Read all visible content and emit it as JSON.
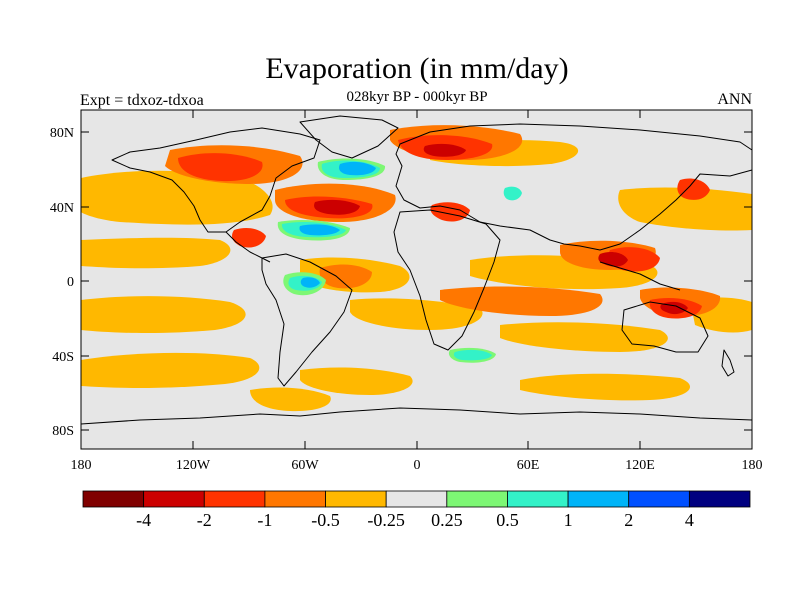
{
  "header": {
    "title": "Evaporation (in mm/day)",
    "subtitle": "028kyr BP - 000kyr BP",
    "left_label": "Expt = tdxoz-tdxoa",
    "right_label": "ANN"
  },
  "map": {
    "x_ticks": [
      "180",
      "120W",
      "60W",
      "0",
      "60E",
      "120E",
      "180"
    ],
    "y_ticks": [
      "80N",
      "40N",
      "0",
      "40S",
      "80S"
    ],
    "land_color": "#e6e6e6",
    "ocean_color": "#e6e6e6",
    "coast_color": "#000000"
  },
  "colorbar": {
    "colors": [
      "#800000",
      "#cc0000",
      "#ff3300",
      "#ff7700",
      "#ffb800",
      "#e6e6e6",
      "#7df774",
      "#33f2c8",
      "#00b4f8",
      "#0050ff",
      "#000080"
    ],
    "labels": [
      "-4",
      "-2",
      "-1",
      "-0.5",
      "-0.25",
      "0.25",
      "0.5",
      "1",
      "2",
      "4"
    ]
  }
}
